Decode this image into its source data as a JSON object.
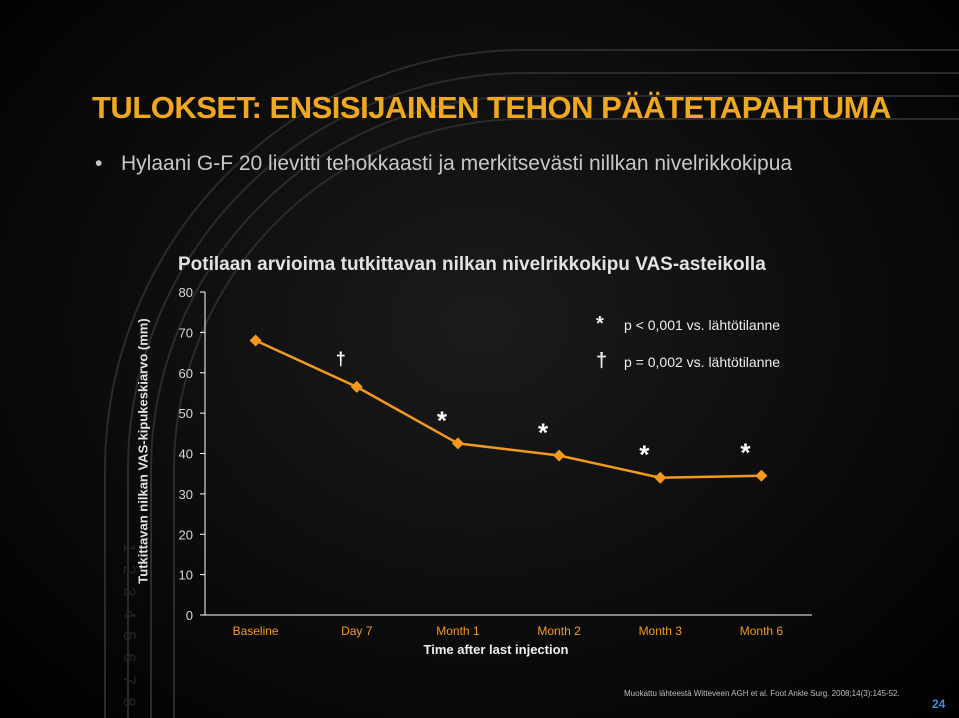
{
  "slide": {
    "title": "TULOKSET: ENSISIJAINEN TEHON PÄÄTETAPAHTUMA",
    "bullet": "Hylaani G-F 20 lievitti tehokkaasti ja merkitsevästi nillkan nivelrikkokipua",
    "footnote": "Muokattu lähteestä Witteveen AGH et al. Foot Ankle Surg. 2008;14(3):145-52.",
    "page_number": "24",
    "track_lane_numbers": [
      "1",
      "2",
      "3",
      "4",
      "5",
      "6",
      "7",
      "8"
    ]
  },
  "chart_data": {
    "type": "line",
    "title": "Potilaan arvioima tutkittavan nilkan nivelrikkokipu VAS-asteikolla",
    "xlabel": "Time after last injection",
    "ylabel": "Tutkittavan nilkan VAS-kipukeskiarvo (mm)",
    "categories": [
      "Baseline",
      "Day 7",
      "Month 1",
      "Month 2",
      "Month 3",
      "Month 6"
    ],
    "values": [
      68,
      56.5,
      42.5,
      39.5,
      34,
      34.5
    ],
    "markers": [
      "",
      "†",
      "*",
      "*",
      "*",
      "*"
    ],
    "ylim": [
      0,
      80
    ],
    "yticks": [
      "0",
      "10",
      "20",
      "30",
      "40",
      "50",
      "60",
      "70",
      "80"
    ],
    "grid": false,
    "legend": [
      {
        "symbol": "*",
        "text": "p < 0,001 vs. lähtötilanne"
      },
      {
        "symbol": "†",
        "text": "p = 0,002 vs. lähtötilanne"
      }
    ],
    "colors": {
      "line": "#f39a1e",
      "marker": "#f39a1e",
      "axis": "#ffffff",
      "x_tick_labels": "#f39a1e",
      "y_tick_labels": "#d8d8d8"
    }
  }
}
